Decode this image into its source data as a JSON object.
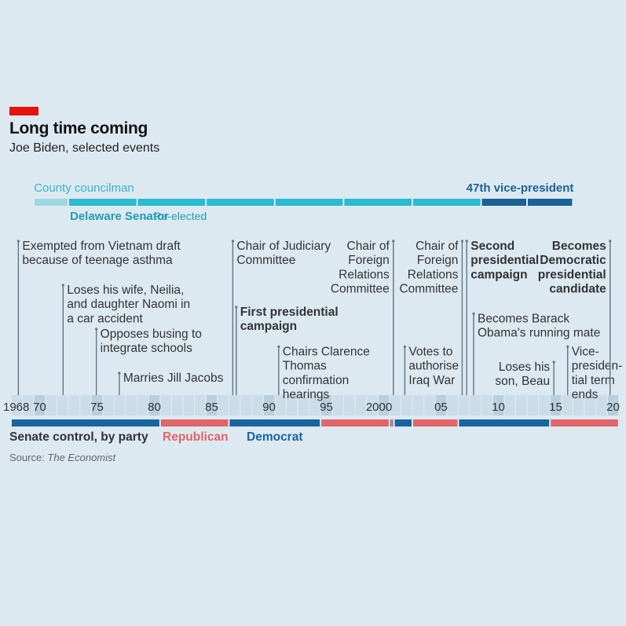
{
  "header": {
    "title": "Long time coming",
    "subtitle": "Joe Biden, selected events"
  },
  "footer": {
    "senate_label": "Senate control, by party",
    "republican_label": "Republican",
    "democrat_label": "Democrat",
    "source_prefix": "Source: ",
    "source_name": "The Economist"
  },
  "colors": {
    "background": "#dde9f1",
    "accent_red": "#e3120b",
    "senator": "#2bbbd0",
    "county": "#9fd7e2",
    "vp": "#1a6296",
    "republican": "#e06469",
    "democrat": "#1865a0",
    "leader": "#5a7888"
  },
  "chart_data": {
    "type": "timeline",
    "title": "Long time coming",
    "subtitle": "Joe Biden, selected events",
    "x_range": [
      1968,
      2020
    ],
    "tick_labels": [
      {
        "year": 1968,
        "label": "1968"
      },
      {
        "year": 1970,
        "label": "70"
      },
      {
        "year": 1975,
        "label": "75"
      },
      {
        "year": 1980,
        "label": "80"
      },
      {
        "year": 1985,
        "label": "85"
      },
      {
        "year": 1990,
        "label": "90"
      },
      {
        "year": 1995,
        "label": "95"
      },
      {
        "year": 2000,
        "label": "2000"
      },
      {
        "year": 2005,
        "label": "05"
      },
      {
        "year": 2010,
        "label": "10"
      },
      {
        "year": 2015,
        "label": "15"
      },
      {
        "year": 2020,
        "label": "20"
      }
    ],
    "career_terms": [
      {
        "role": "County councilman",
        "start": 1970,
        "end": 1973,
        "kind": "county"
      },
      {
        "role": "Delaware Senator",
        "start": 1973,
        "end": 1979,
        "kind": "senator"
      },
      {
        "role": "Delaware Senator",
        "start": 1979,
        "end": 1985,
        "kind": "senator"
      },
      {
        "role": "Delaware Senator",
        "start": 1985,
        "end": 1991,
        "kind": "senator"
      },
      {
        "role": "Delaware Senator",
        "start": 1991,
        "end": 1997,
        "kind": "senator"
      },
      {
        "role": "Delaware Senator",
        "start": 1997,
        "end": 2003,
        "kind": "senator"
      },
      {
        "role": "Delaware Senator",
        "start": 2003,
        "end": 2009,
        "kind": "senator"
      },
      {
        "role": "47th vice-president",
        "start": 2009,
        "end": 2013,
        "kind": "vp"
      },
      {
        "role": "47th vice-president",
        "start": 2013,
        "end": 2017,
        "kind": "vp"
      }
    ],
    "career_labels": {
      "county": "County councilman",
      "senator": "Delaware Senator",
      "reelected": "→ Re-elected",
      "vp": "47th vice-president"
    },
    "events": [
      {
        "year": 1968.3,
        "lines": [
          "Exempted from Vietnam draft",
          "because of teenage asthma"
        ],
        "bold": false,
        "side": "right",
        "row": 0
      },
      {
        "year": 1972.2,
        "lines": [
          "Loses his wife, Neilia,",
          "and daughter Naomi in",
          "a car accident"
        ],
        "bold": false,
        "side": "right",
        "row": 1
      },
      {
        "year": 1975.1,
        "lines": [
          "Opposes busing to",
          "integrate schools"
        ],
        "bold": false,
        "side": "right",
        "row": 2
      },
      {
        "year": 1977.1,
        "lines": [
          "Marries Jill Jacobs"
        ],
        "bold": false,
        "side": "right",
        "row": 3
      },
      {
        "year": 1987.0,
        "lines": [
          "Chair of Judiciary",
          "Committee"
        ],
        "bold": false,
        "side": "right",
        "row": 0
      },
      {
        "year": 1987.3,
        "lines": [
          "First presidential",
          "campaign"
        ],
        "bold": true,
        "side": "right",
        "row": 1.5
      },
      {
        "year": 1991.0,
        "lines": [
          "Chairs Clarence",
          "Thomas",
          "confirmation",
          "hearings"
        ],
        "bold": false,
        "side": "right",
        "row": 2.4
      },
      {
        "year": 2001.0,
        "lines": [
          "Chair of",
          "Foreign",
          "Relations",
          "Committee"
        ],
        "bold": false,
        "side": "left",
        "row": 0
      },
      {
        "year": 2002.0,
        "lines": [
          "Votes to",
          "authorise",
          "Iraq War"
        ],
        "bold": false,
        "side": "right",
        "row": 2.4
      },
      {
        "year": 2007.0,
        "lines": [
          "Chair of",
          "Foreign",
          "Relations",
          "Committee"
        ],
        "bold": false,
        "side": "left",
        "row": 0
      },
      {
        "year": 2007.4,
        "lines": [
          "Second",
          "presidential",
          "campaign"
        ],
        "bold": true,
        "side": "right",
        "row": 0
      },
      {
        "year": 2008.0,
        "lines": [
          "Becomes Barack",
          "Obama's running mate"
        ],
        "bold": false,
        "side": "right",
        "row": 1.65
      },
      {
        "year": 2015.0,
        "lines": [
          "Loses his",
          "son, Beau"
        ],
        "bold": false,
        "side": "left",
        "row": 2.75
      },
      {
        "year": 2016.2,
        "lines": [
          "Vice-",
          "presiden-",
          "tial term",
          "ends"
        ],
        "bold": false,
        "side": "right",
        "row": 2.4
      },
      {
        "year": 2019.9,
        "lines": [
          "Becomes",
          "Democratic",
          "presidential",
          "candidate"
        ],
        "bold": true,
        "side": "left",
        "row": 0
      }
    ],
    "senate_control": [
      {
        "start": 1968,
        "end": 1981,
        "party": "Democrat"
      },
      {
        "start": 1981,
        "end": 1987,
        "party": "Republican"
      },
      {
        "start": 1987,
        "end": 1995,
        "party": "Democrat"
      },
      {
        "start": 1995,
        "end": 2001,
        "party": "Republican"
      },
      {
        "start": 2001,
        "end": 2001.1,
        "party": "Democrat"
      },
      {
        "start": 2001.1,
        "end": 2001.4,
        "party": "Republican"
      },
      {
        "start": 2001.4,
        "end": 2003,
        "party": "Democrat"
      },
      {
        "start": 2003,
        "end": 2007,
        "party": "Republican"
      },
      {
        "start": 2007,
        "end": 2015,
        "party": "Democrat"
      },
      {
        "start": 2015,
        "end": 2021,
        "party": "Republican"
      }
    ],
    "legend": [
      "Republican",
      "Democrat"
    ],
    "source": "The Economist"
  }
}
